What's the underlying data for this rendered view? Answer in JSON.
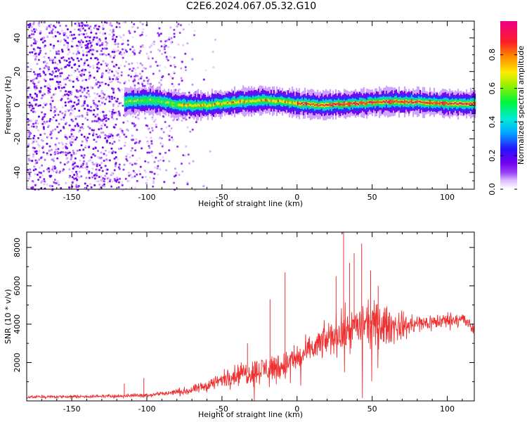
{
  "page": {
    "title": "C2E6.2024.067.05.32.G10"
  },
  "chart_data": [
    {
      "type": "heatmap",
      "title": "C2E6.2024.067.05.32.G10",
      "xlabel": "Height of straight line (km)",
      "ylabel": "Frequency (Hz)",
      "xlim": [
        -180,
        118
      ],
      "ylim": [
        -50,
        50
      ],
      "xticks": [
        -150,
        -100,
        -50,
        0,
        50,
        100
      ],
      "yticks": [
        -40,
        -20,
        0,
        20,
        40
      ],
      "colorbar": {
        "label": "Normalized spectral amplitude",
        "range": [
          0,
          1
        ],
        "ticks": [
          "0.0",
          "0.2",
          "0.4",
          "0.6",
          "0.8"
        ],
        "colormap": "white-purple-blue-cyan-green-yellow-orange-red-magenta"
      },
      "features": {
        "noise_scatter_region_x": [
          -180,
          -70
        ],
        "signal_band_start_x": -115,
        "signal_center_freq": [
          [
            -115,
            2
          ],
          [
            -100,
            3
          ],
          [
            -90,
            2
          ],
          [
            -80,
            0
          ],
          [
            -60,
            0
          ],
          [
            -40,
            2
          ],
          [
            -20,
            3
          ],
          [
            0,
            1
          ],
          [
            20,
            0
          ],
          [
            40,
            1
          ],
          [
            55,
            2
          ],
          [
            80,
            2
          ],
          [
            100,
            1
          ],
          [
            118,
            1
          ]
        ]
      }
    },
    {
      "type": "line",
      "xlabel": "Height of straight line (km)",
      "ylabel": "SNR (10 * v/v)",
      "xlim": [
        -180,
        118
      ],
      "ylim": [
        0,
        8800
      ],
      "xticks": [
        -150,
        -100,
        -50,
        0,
        50,
        100
      ],
      "yticks": [
        2000,
        4000,
        6000,
        8000
      ],
      "color": "#ef3030",
      "envelope": {
        "x": [
          -180,
          -120,
          -100,
          -90,
          -80,
          -70,
          -60,
          -50,
          -40,
          -30,
          -20,
          -10,
          0,
          10,
          20,
          30,
          40,
          50,
          60,
          70,
          80,
          90,
          100,
          110,
          118
        ],
        "mean": [
          200,
          250,
          300,
          380,
          450,
          550,
          800,
          1100,
          1400,
          1500,
          1700,
          1800,
          2200,
          2700,
          3200,
          3600,
          3900,
          4000,
          3900,
          3900,
          4000,
          4100,
          4200,
          4300,
          3700
        ],
        "spread": [
          100,
          120,
          150,
          200,
          250,
          300,
          450,
          600,
          800,
          900,
          1000,
          1100,
          900,
          1000,
          1200,
          1500,
          1400,
          1500,
          1400,
          1000,
          700,
          600,
          600,
          500,
          500
        ]
      },
      "spikes": [
        [
          -115,
          900
        ],
        [
          -102,
          1200
        ],
        [
          -33,
          3000
        ],
        [
          -18,
          5300
        ],
        [
          -8,
          6700
        ],
        [
          -2,
          2900
        ],
        [
          26,
          6500
        ],
        [
          31,
          8800
        ],
        [
          35,
          7200
        ],
        [
          38,
          7700
        ],
        [
          43,
          8200
        ],
        [
          49,
          6800
        ],
        [
          54,
          6000
        ]
      ]
    }
  ]
}
